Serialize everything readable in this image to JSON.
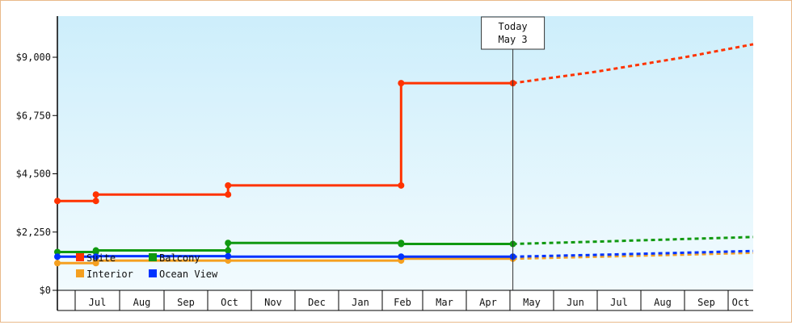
{
  "chart_data": {
    "type": "line",
    "subtype": "step-with-projection",
    "title": "",
    "xlabel": "",
    "ylabel": "",
    "y_ticks": [
      "$0",
      "$2,250",
      "$4,500",
      "$6,750",
      "$9,000"
    ],
    "ylim": [
      0,
      9000
    ],
    "x_months": [
      "Jun",
      "Jul",
      "Aug",
      "Sep",
      "Oct",
      "Nov",
      "Dec",
      "Jan",
      "Feb",
      "Mar",
      "Apr",
      "May",
      "Jun",
      "Jul",
      "Aug",
      "Sep",
      "Oct"
    ],
    "x_tick_labels": [
      "Jul",
      "Aug",
      "Sep",
      "Oct",
      "Nov",
      "Dec",
      "Jan",
      "Feb",
      "Mar",
      "Apr",
      "May",
      "Jun",
      "Jul",
      "Aug",
      "Sep",
      "Oct"
    ],
    "today_marker": {
      "line1": "Today",
      "line2": "May 3"
    },
    "legend": {
      "placement": "bottom-left"
    },
    "grid": false,
    "series": [
      {
        "name": "Suite",
        "color": "#ff3300",
        "points": [
          [
            "Jun 1",
            3450
          ],
          [
            "Jul 15",
            3450
          ],
          [
            "Jul 15",
            3700
          ],
          [
            "Oct 15",
            3700
          ],
          [
            "Oct 15",
            4050
          ],
          [
            "Feb 15",
            4050
          ],
          [
            "Feb 15",
            8000
          ],
          [
            "May 3",
            8000
          ]
        ],
        "projection": [
          [
            "May 3",
            8000
          ],
          [
            "Jul 1",
            8450
          ],
          [
            "Sep 1",
            9000
          ],
          [
            "Oct 31",
            9500
          ]
        ]
      },
      {
        "name": "Balcony",
        "color": "#109910",
        "points": [
          [
            "Jun 1",
            1480
          ],
          [
            "Jul 15",
            1480
          ],
          [
            "Jul 15",
            1540
          ],
          [
            "Oct 15",
            1540
          ],
          [
            "Oct 15",
            1830
          ],
          [
            "Feb 15",
            1830
          ],
          [
            "Feb 15",
            1790
          ],
          [
            "May 3",
            1790
          ]
        ],
        "projection": [
          [
            "May 3",
            1790
          ],
          [
            "Jul 1",
            1880
          ],
          [
            "Sep 1",
            1980
          ],
          [
            "Oct 31",
            2060
          ]
        ]
      },
      {
        "name": "Interior",
        "color": "#f5a020",
        "points": [
          [
            "Jun 1",
            1050
          ],
          [
            "Jul 15",
            1050
          ],
          [
            "Jul 15",
            1150
          ],
          [
            "Oct 15",
            1150
          ],
          [
            "Oct 15",
            1150
          ],
          [
            "Feb 15",
            1150
          ],
          [
            "Feb 15",
            1220
          ],
          [
            "May 3",
            1220
          ]
        ],
        "projection": [
          [
            "May 3",
            1220
          ],
          [
            "Jul 1",
            1300
          ],
          [
            "Sep 1",
            1380
          ],
          [
            "Oct 31",
            1450
          ]
        ]
      },
      {
        "name": "Ocean View",
        "color": "#0033ff",
        "points": [
          [
            "Jun 1",
            1300
          ],
          [
            "Jul 15",
            1300
          ],
          [
            "Jul 15",
            1320
          ],
          [
            "Oct 15",
            1320
          ],
          [
            "Oct 15",
            1300
          ],
          [
            "Feb 15",
            1300
          ],
          [
            "Feb 15",
            1300
          ],
          [
            "May 3",
            1300
          ]
        ],
        "projection": [
          [
            "May 3",
            1300
          ],
          [
            "Jul 1",
            1370
          ],
          [
            "Sep 1",
            1450
          ],
          [
            "Oct 31",
            1520
          ]
        ]
      }
    ]
  }
}
